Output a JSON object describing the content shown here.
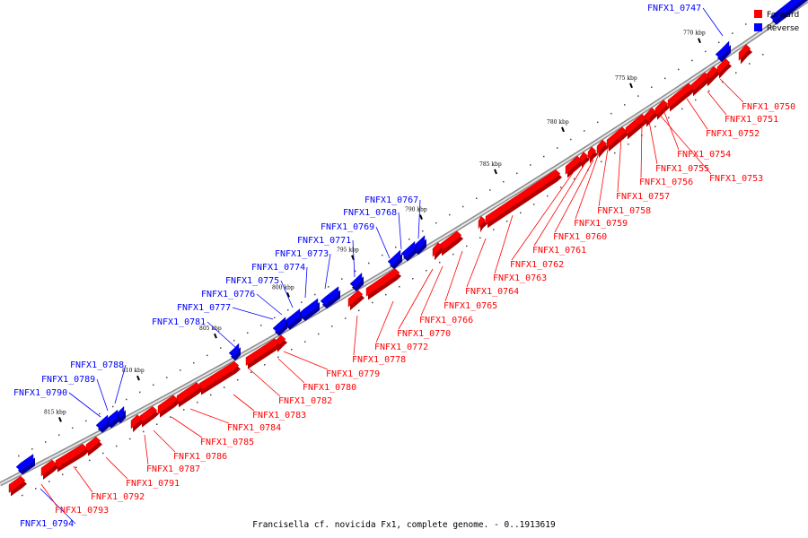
{
  "legend": {
    "forward_label": "Forward",
    "reverse_label": "Reverse",
    "forward_color": "#ff0000",
    "reverse_color": "#0000ff"
  },
  "caption": "Francisella cf. novicida Fx1, complete genome. - 0..1913619",
  "kbp_ticks": [
    "770 kbp",
    "775 kbp",
    "780 kbp",
    "785 kbp",
    "790 kbp",
    "795 kbp",
    "800 kbp",
    "805 kbp",
    "810 kbp",
    "815 kbp"
  ],
  "reverse_labels": [
    "FNFX1_0747",
    "FNFX1_0767",
    "FNFX1_0768",
    "FNFX1_0769",
    "FNFX1_0771",
    "FNFX1_0773",
    "FNFX1_0774",
    "FNFX1_0775",
    "FNFX1_0776",
    "FNFX1_0777",
    "FNFX1_0781",
    "FNFX1_0788",
    "FNFX1_0789",
    "FNFX1_0790",
    "FNFX1_0794"
  ],
  "forward_labels": [
    "FNFX1_0750",
    "FNFX1_0751",
    "FNFX1_0752",
    "FNFX1_0754",
    "FNFX1_0755",
    "FNFX1_0753",
    "FNFX1_0756",
    "FNFX1_0757",
    "FNFX1_0758",
    "FNFX1_0759",
    "FNFX1_0760",
    "FNFX1_0761",
    "FNFX1_0762",
    "FNFX1_0763",
    "FNFX1_0764",
    "FNFX1_0765",
    "FNFX1_0766",
    "FNFX1_0770",
    "FNFX1_0772",
    "FNFX1_0778",
    "FNFX1_0779",
    "FNFX1_0780",
    "FNFX1_0782",
    "FNFX1_0783",
    "FNFX1_0784",
    "FNFX1_0785",
    "FNFX1_0786",
    "FNFX1_0787",
    "FNFX1_0791",
    "FNFX1_0792",
    "FNFX1_0793"
  ]
}
